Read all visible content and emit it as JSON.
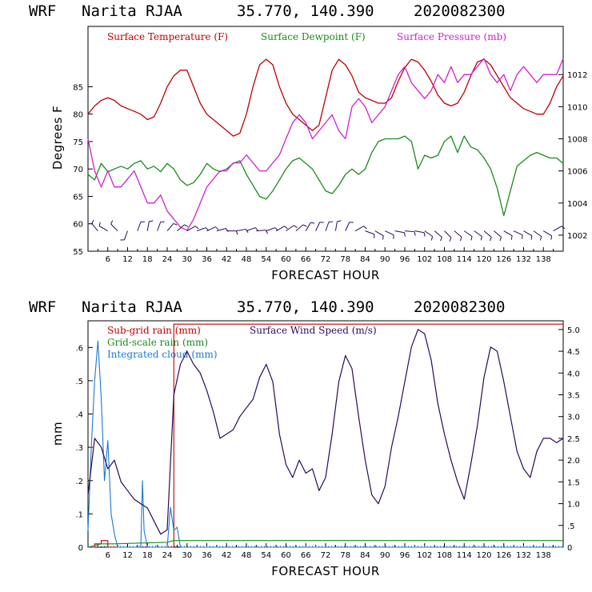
{
  "header": {
    "model": "WRF",
    "station": "Narita RJAA",
    "coords": "35.770, 140.390",
    "init": "2020082300"
  },
  "colors": {
    "temperature": "#c00000",
    "dewpoint": "#1a8a1a",
    "pressure": "#d020d0",
    "subgrid_rain": "#c00000",
    "gridscale_rain": "#1a8a1a",
    "cloud": "#1a7ad0",
    "wind_speed": "#2a0a5a",
    "barbs": "#2a0a5a"
  },
  "chart_data": [
    {
      "type": "line",
      "title": "WRF Narita RJAA 35.770, 140.390 2020082300",
      "xlabel": "FORECAST HOUR",
      "ylabel": "Degrees F",
      "xlim": [
        0,
        144
      ],
      "x_ticks": [
        "6",
        "12",
        "18",
        "24",
        "30",
        "36",
        "42",
        "48",
        "54",
        "60",
        "66",
        "72",
        "78",
        "84",
        "90",
        "96",
        "102",
        "108",
        "114",
        "120",
        "126",
        "132",
        "138"
      ],
      "ylim": [
        55,
        96
      ],
      "y_ticks": [
        "55",
        "60",
        "65",
        "70",
        "75",
        "80",
        "85"
      ],
      "y2lim": [
        1001,
        1015
      ],
      "y2_ticks": [
        "1002",
        "1004",
        "1006",
        "1008",
        "1010",
        "1012"
      ],
      "wind_barbs_row": "bottom strip near 59 F",
      "series": [
        {
          "name": "Surface Temperature (F)",
          "axis": "left",
          "x": [
            0,
            2,
            4,
            6,
            8,
            10,
            12,
            14,
            16,
            18,
            20,
            22,
            24,
            26,
            28,
            30,
            32,
            34,
            36,
            38,
            40,
            42,
            44,
            46,
            48,
            50,
            52,
            54,
            56,
            58,
            60,
            62,
            64,
            66,
            68,
            70,
            72,
            74,
            76,
            78,
            80,
            82,
            84,
            86,
            88,
            90,
            92,
            94,
            96,
            98,
            100,
            102,
            104,
            106,
            108,
            110,
            112,
            114,
            116,
            118,
            120,
            122,
            124,
            126,
            128,
            130,
            132,
            134,
            136,
            138,
            140,
            142,
            144
          ],
          "values": [
            80,
            81.5,
            82.5,
            83,
            82.5,
            81.5,
            81,
            80.5,
            80,
            79,
            79.5,
            82,
            85,
            87,
            88,
            88,
            85,
            82,
            80,
            79,
            78,
            77,
            76,
            76.5,
            80,
            85,
            89,
            90,
            89,
            85,
            82,
            80,
            79,
            78,
            77,
            78,
            83,
            88,
            90,
            89,
            87,
            84,
            83,
            82.5,
            82,
            82,
            83,
            86,
            88.5,
            90,
            89.5,
            88,
            86,
            83.5,
            82,
            81.5,
            82,
            84,
            87,
            89.5,
            90,
            89,
            87,
            85,
            83,
            82,
            81,
            80.5,
            80,
            80,
            82,
            85,
            87
          ]
        },
        {
          "name": "Surface Dewpoint (F)",
          "axis": "left",
          "x": [
            0,
            2,
            4,
            6,
            8,
            10,
            12,
            14,
            16,
            18,
            20,
            22,
            24,
            26,
            28,
            30,
            32,
            34,
            36,
            38,
            40,
            42,
            44,
            46,
            48,
            50,
            52,
            54,
            56,
            58,
            60,
            62,
            64,
            66,
            68,
            70,
            72,
            74,
            76,
            78,
            80,
            82,
            84,
            86,
            88,
            90,
            92,
            94,
            96,
            98,
            100,
            102,
            104,
            106,
            108,
            110,
            112,
            114,
            116,
            118,
            120,
            122,
            124,
            126,
            128,
            130,
            132,
            134,
            136,
            138,
            140,
            142,
            144
          ],
          "values": [
            69,
            68,
            71,
            69.5,
            70,
            70.5,
            70,
            71,
            71.5,
            70,
            70.5,
            69.5,
            71,
            70,
            68,
            67,
            67.5,
            69,
            71,
            70,
            69.5,
            70,
            71,
            71.5,
            69,
            67,
            65,
            64.5,
            66,
            68,
            70,
            71.5,
            72,
            71,
            70,
            68,
            66,
            65.5,
            67,
            69,
            70,
            69,
            70,
            73,
            75,
            75.5,
            75.5,
            75.5,
            76,
            75,
            70,
            72.5,
            72,
            72.5,
            75,
            76,
            73,
            76,
            74,
            73.5,
            72,
            70,
            66.5,
            61.5,
            66,
            70.5,
            71.5,
            72.5,
            73,
            72.5,
            72,
            72,
            71
          ]
        },
        {
          "name": "Surface Pressure (mb)",
          "axis": "right",
          "x": [
            0,
            2,
            4,
            6,
            8,
            10,
            12,
            14,
            16,
            18,
            20,
            22,
            24,
            26,
            28,
            30,
            32,
            34,
            36,
            38,
            40,
            42,
            44,
            46,
            48,
            50,
            52,
            54,
            56,
            58,
            60,
            62,
            64,
            66,
            68,
            70,
            72,
            74,
            76,
            78,
            80,
            82,
            84,
            86,
            88,
            90,
            92,
            94,
            96,
            98,
            100,
            102,
            104,
            106,
            108,
            110,
            112,
            114,
            116,
            118,
            120,
            122,
            124,
            126,
            128,
            130,
            132,
            134,
            136,
            138,
            140,
            142,
            144
          ],
          "values": [
            1008,
            1006,
            1005,
            1006,
            1005,
            1005,
            1005.5,
            1006,
            1005,
            1004,
            1004,
            1004.5,
            1003.5,
            1003,
            1002.5,
            1002.3,
            1003,
            1004,
            1005,
            1005.5,
            1006,
            1006,
            1006.5,
            1006.5,
            1007,
            1006.5,
            1006,
            1006,
            1006.5,
            1007,
            1008,
            1009,
            1009.5,
            1009,
            1008,
            1008.5,
            1009,
            1009.5,
            1008.5,
            1008,
            1010,
            1010.5,
            1010,
            1009,
            1009.5,
            1010,
            1011,
            1012,
            1012.5,
            1011.5,
            1011,
            1010.5,
            1011,
            1012,
            1011.5,
            1012.5,
            1011.5,
            1012,
            1012,
            1012.5,
            1013,
            1012,
            1011.5,
            1012,
            1011,
            1012,
            1012.5,
            1012,
            1011.5,
            1012,
            1012,
            1012,
            1013
          ]
        }
      ]
    },
    {
      "type": "line",
      "title": "WRF Narita RJAA 35.770, 140.390 2020082300",
      "xlabel": "FORECAST HOUR",
      "ylabel": "mm",
      "xlim": [
        0,
        144
      ],
      "x_ticks": [
        "6",
        "12",
        "18",
        "24",
        "30",
        "36",
        "42",
        "48",
        "54",
        "60",
        "66",
        "72",
        "78",
        "84",
        "90",
        "96",
        "102",
        "108",
        "114",
        "120",
        "126",
        "132",
        "138"
      ],
      "ylim": [
        0,
        0.68
      ],
      "y_ticks": [
        "0",
        ".1",
        ".2",
        ".3",
        ".4",
        ".5",
        ".6"
      ],
      "y2lim": [
        0,
        5.2
      ],
      "y2_ticks": [
        "0",
        ".5",
        "1.0",
        "1.5",
        "2.0",
        "2.5",
        "3.0",
        "3.5",
        "4.0",
        "4.5",
        "5.0"
      ],
      "series": [
        {
          "name": "Sub-grid rain (mm)",
          "axis": "left",
          "x": [
            0,
            2,
            4,
            6,
            8,
            10,
            12,
            14,
            16,
            18,
            20,
            22,
            24,
            25,
            26,
            28,
            144
          ],
          "values": [
            0,
            0.01,
            0.02,
            0,
            0,
            0,
            0,
            0,
            0,
            0,
            0,
            0,
            0,
            0,
            0.67,
            0.67,
            0.67
          ]
        },
        {
          "name": "Grid-scale rain (mm)",
          "axis": "left",
          "x": [
            0,
            2,
            4,
            6,
            8,
            24,
            26,
            28,
            144
          ],
          "values": [
            0,
            0.005,
            0.01,
            0.01,
            0.01,
            0.015,
            0.02,
            0.02,
            0.02
          ]
        },
        {
          "name": "Integrated cloud (mm)",
          "axis": "left",
          "x": [
            0,
            1,
            2,
            3,
            4,
            5,
            6,
            7,
            8,
            9,
            10,
            11,
            12,
            14,
            16,
            16.5,
            17,
            18,
            20,
            24,
            25,
            26,
            27,
            28,
            30,
            32,
            144
          ],
          "values": [
            0.05,
            0.3,
            0.5,
            0.62,
            0.45,
            0.2,
            0.32,
            0.1,
            0.04,
            0,
            0,
            0,
            0,
            0,
            0,
            0.2,
            0.05,
            0,
            0,
            0,
            0.12,
            0.05,
            0.06,
            0,
            0,
            0,
            0
          ]
        },
        {
          "name": "Surface Wind Speed (m/s)",
          "axis": "right",
          "x": [
            0,
            2,
            4,
            6,
            8,
            10,
            12,
            14,
            16,
            18,
            20,
            22,
            24,
            26,
            28,
            30,
            32,
            34,
            36,
            38,
            40,
            42,
            44,
            46,
            48,
            50,
            52,
            54,
            56,
            58,
            60,
            62,
            64,
            66,
            68,
            70,
            72,
            74,
            76,
            78,
            80,
            82,
            84,
            86,
            88,
            90,
            92,
            94,
            96,
            98,
            100,
            102,
            104,
            106,
            108,
            110,
            112,
            114,
            116,
            118,
            120,
            122,
            124,
            126,
            128,
            130,
            132,
            134,
            136,
            138,
            140,
            142,
            144
          ],
          "values": [
            1.2,
            2.5,
            2.3,
            1.8,
            2.0,
            1.5,
            1.3,
            1.1,
            1.0,
            0.9,
            0.6,
            0.3,
            0.4,
            3.5,
            4.2,
            4.5,
            4.2,
            4.0,
            3.6,
            3.1,
            2.5,
            2.6,
            2.7,
            3.0,
            3.2,
            3.4,
            3.9,
            4.2,
            3.8,
            2.6,
            1.9,
            1.6,
            2.0,
            1.7,
            1.8,
            1.3,
            1.6,
            2.6,
            3.8,
            4.4,
            4.1,
            3.0,
            2.0,
            1.2,
            1.0,
            1.4,
            2.3,
            3.0,
            3.8,
            4.6,
            5.0,
            4.9,
            4.3,
            3.3,
            2.6,
            2.0,
            1.5,
            1.1,
            1.9,
            2.8,
            3.9,
            4.6,
            4.5,
            3.8,
            3.0,
            2.2,
            1.8,
            1.6,
            2.2,
            2.5,
            2.5,
            2.4,
            2.5
          ]
        }
      ]
    }
  ],
  "wind_barbs": {
    "x": [
      3,
      6,
      9,
      12,
      15,
      18,
      21,
      24,
      27,
      30,
      33,
      36,
      39,
      42,
      45,
      48,
      51,
      54,
      57,
      60,
      63,
      66,
      69,
      72,
      75,
      78,
      81,
      84,
      87,
      90,
      93,
      96,
      99,
      102,
      105,
      108,
      111,
      114,
      117,
      120,
      123,
      126,
      129,
      132,
      135,
      138,
      141
    ],
    "direction_deg": [
      320,
      300,
      315,
      200,
      20,
      10,
      20,
      40,
      50,
      60,
      70,
      65,
      75,
      90,
      80,
      70,
      85,
      70,
      60,
      55,
      50,
      30,
      25,
      20,
      10,
      25,
      60,
      110,
      120,
      115,
      100,
      95,
      100,
      125,
      130,
      135,
      130,
      125,
      125,
      130,
      130,
      120,
      115,
      120,
      125,
      120,
      60
    ]
  }
}
